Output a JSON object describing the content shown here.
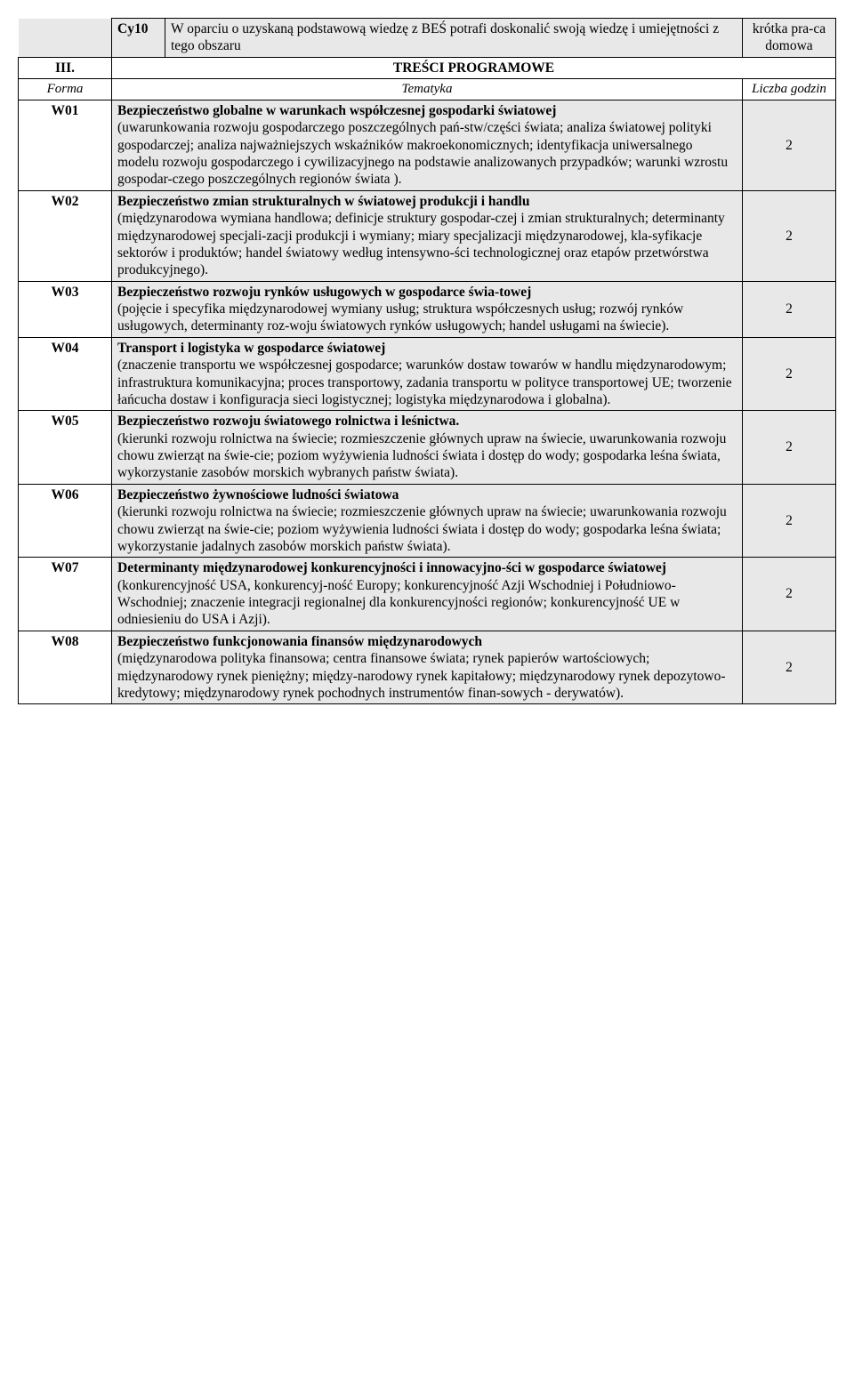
{
  "topRow": {
    "code": "Cy10",
    "text": "W oparciu o uzyskaną podstawową wiedzę z BEŚ potrafi doskonalić swoją wiedzę i umiejętności z tego obszaru",
    "right": "krótka pra-ca domowa"
  },
  "sectionHeader": {
    "num": "III.",
    "title": "TREŚCI PROGRAMOWE"
  },
  "subHeader": {
    "left": "Forma",
    "mid": "Tematyka",
    "right": "Liczba godzin"
  },
  "rows": [
    {
      "code": "W01",
      "title": "Bezpieczeństwo globalne w warunkach współczesnej gospodarki światowej",
      "body": "(uwarunkowania rozwoju gospodarczego poszczególnych pań-stw/części świata; analiza światowej polityki gospodarczej; analiza najważniejszych wskaźników makroekonomicznych; identyfikacja uniwersalnego modelu rozwoju gospodarczego i cywilizacyjnego na podstawie analizowanych przypadków; warunki wzrostu gospodar-czego poszczególnych regionów świata ).",
      "hours": "2"
    },
    {
      "code": "W02",
      "title": "Bezpieczeństwo zmian strukturalnych w światowej produkcji i handlu",
      "body": "(międzynarodowa wymiana handlowa; definicje struktury gospodar-czej i zmian strukturalnych; determinanty międzynarodowej specjali-zacji produkcji i wymiany; miary specjalizacji międzynarodowej, kla-syfikacje sektorów i produktów; handel światowy według intensywno-ści technologicznej oraz etapów przetwórstwa produkcyjnego).",
      "hours": "2"
    },
    {
      "code": "W03",
      "title": "Bezpieczeństwo rozwoju rynków usługowych w gospodarce świa-towej",
      "body": "(pojęcie i specyfika międzynarodowej wymiany usług; struktura współczesnych usług; rozwój rynków usługowych, determinanty roz-woju światowych rynków usługowych; handel usługami na świecie).",
      "hours": "2"
    },
    {
      "code": "W04",
      "title": "Transport i logistyka w gospodarce światowej",
      "body": "(znaczenie transportu we współczesnej gospodarce; warunków dostaw towarów w handlu międzynarodowym; infrastruktura komunikacyjna; proces transportowy, zadania transportu w polityce transportowej UE; tworzenie łańcucha dostaw i konfiguracja sieci logistycznej; logistyka międzynarodowa i globalna).",
      "hours": "2"
    },
    {
      "code": "W05",
      "title": "Bezpieczeństwo rozwoju światowego rolnictwa i leśnictwa.",
      "body": "(kierunki rozwoju rolnictwa na świecie; rozmieszczenie głównych upraw na świecie, uwarunkowania rozwoju chowu zwierząt na świe-cie; poziom wyżywienia ludności świata i dostęp do wody; gospodarka leśna świata, wykorzystanie zasobów morskich wybranych państw świata).",
      "hours": "2"
    },
    {
      "code": "W06",
      "title": "Bezpieczeństwo żywnościowe ludności światowa",
      "body": "(kierunki rozwoju rolnictwa na świecie; rozmieszczenie głównych upraw na świecie; uwarunkowania rozwoju chowu zwierząt na świe-cie; poziom wyżywienia ludności świata i dostęp do wody; gospodarka leśna świata; wykorzystanie jadalnych zasobów morskich państw świata).",
      "hours": "2"
    },
    {
      "code": "W07",
      "title": "Determinanty międzynarodowej konkurencyjności i innowacyjno-ści w gospodarce światowej",
      "body": " (konkurencyjność USA, konkurencyj-ność Europy; konkurencyjność Azji Wschodniej i Południowo-Wschodniej; znaczenie integracji regionalnej dla konkurencyjności regionów; konkurencyjność UE w odniesieniu do USA i Azji).",
      "hours": "2",
      "inline": true
    },
    {
      "code": "W08",
      "title": "Bezpieczeństwo funkcjonowania finansów międzynarodowych",
      "body": "(międzynarodowa polityka finansowa; centra finansowe świata; rynek papierów wartościowych; międzynarodowy rynek pieniężny; między-narodowy rynek kapitałowy; międzynarodowy rynek depozytowo-kredytowy; międzynarodowy rynek pochodnych instrumentów finan-sowych - derywatów).",
      "hours": "2"
    }
  ]
}
